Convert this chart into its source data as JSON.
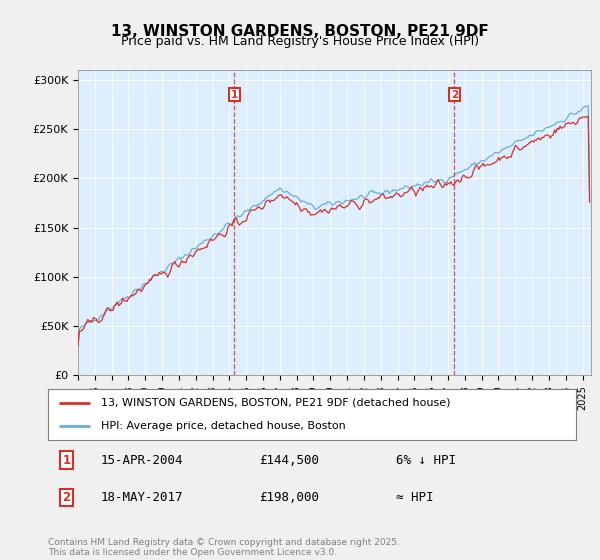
{
  "title": "13, WINSTON GARDENS, BOSTON, PE21 9DF",
  "subtitle": "Price paid vs. HM Land Registry's House Price Index (HPI)",
  "legend_line1": "13, WINSTON GARDENS, BOSTON, PE21 9DF (detached house)",
  "legend_line2": "HPI: Average price, detached house, Boston",
  "annotation1_date": "15-APR-2004",
  "annotation1_price": "£144,500",
  "annotation1_note": "6% ↓ HPI",
  "annotation2_date": "18-MAY-2017",
  "annotation2_price": "£198,000",
  "annotation2_note": "≈ HPI",
  "footer": "Contains HM Land Registry data © Crown copyright and database right 2025.\nThis data is licensed under the Open Government Licence v3.0.",
  "hpi_color": "#6baed6",
  "price_color": "#d73027",
  "annotation_color": "#d73027",
  "fig_bg_color": "#f0f0f0",
  "plot_bg_color": "#ddeeff",
  "ylim": [
    0,
    310000
  ],
  "yticks": [
    0,
    50000,
    100000,
    150000,
    200000,
    250000,
    300000
  ],
  "ytick_labels": [
    "£0",
    "£50K",
    "£100K",
    "£150K",
    "£200K",
    "£250K",
    "£300K"
  ],
  "xstart_year": 1995,
  "xend_year": 2025
}
